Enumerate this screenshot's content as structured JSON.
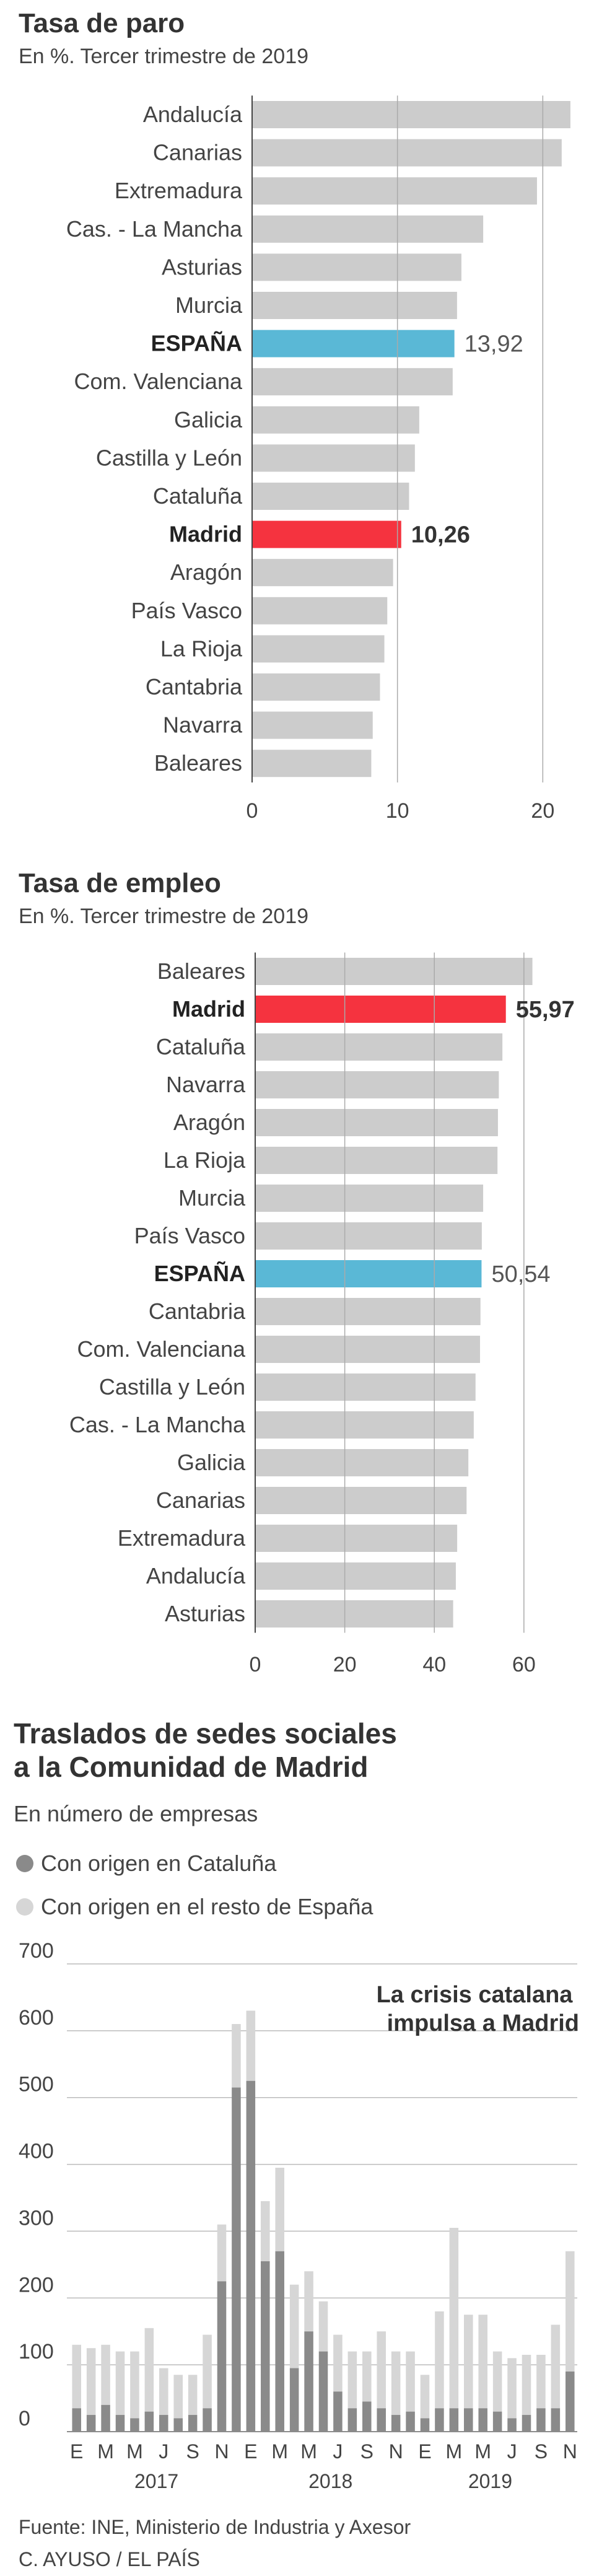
{
  "colors": {
    "bar_default": "#cccccc",
    "bar_spain": "#5ab8d6",
    "bar_madrid": "#f5333f",
    "text": "#333333",
    "cataluna": "#8a8a8a",
    "resto": "#d6d6d6"
  },
  "chart_data": [
    {
      "type": "bar",
      "orientation": "horizontal",
      "title": "Tasa de paro",
      "subtitle": "En %. Tercer trimestre de 2019",
      "categories": [
        "Andalucía",
        "Canarias",
        "Extremadura",
        "Cas. - La Mancha",
        "Asturias",
        "Murcia",
        "ESPAÑA",
        "Com. Valenciana",
        "Galicia",
        "Castilla y León",
        "Cataluña",
        "Madrid",
        "Aragón",
        "País Vasco",
        "La Rioja",
        "Cantabria",
        "Navarra",
        "Baleares"
      ],
      "values": [
        21.9,
        21.3,
        19.6,
        15.9,
        14.4,
        14.1,
        13.92,
        13.8,
        11.5,
        11.2,
        10.8,
        10.26,
        9.7,
        9.3,
        9.1,
        8.8,
        8.3,
        8.2
      ],
      "highlight": {
        "ESPAÑA": "spain",
        "Madrid": "madrid"
      },
      "data_labels": {
        "ESPAÑA": "13,92",
        "Madrid": "10,26"
      },
      "xticks": [
        0,
        10,
        20
      ],
      "xlim": [
        0,
        22.5
      ],
      "grid": true
    },
    {
      "type": "bar",
      "orientation": "horizontal",
      "title": "Tasa de empleo",
      "subtitle": "En %. Tercer trimestre de 2019",
      "categories": [
        "Baleares",
        "Madrid",
        "Cataluña",
        "Navarra",
        "Aragón",
        "La Rioja",
        "Murcia",
        "País Vasco",
        "ESPAÑA",
        "Cantabria",
        "Com. Valenciana",
        "Castilla y León",
        "Cas. - La Mancha",
        "Galicia",
        "Canarias",
        "Extremadura",
        "Andalucía",
        "Asturias"
      ],
      "values": [
        61.9,
        55.97,
        55.2,
        54.4,
        54.2,
        54.1,
        50.9,
        50.6,
        50.54,
        50.3,
        50.2,
        49.2,
        48.8,
        47.6,
        47.2,
        45.1,
        44.8,
        44.2
      ],
      "highlight": {
        "ESPAÑA": "spain",
        "Madrid": "madrid"
      },
      "data_labels": {
        "ESPAÑA": "50,54",
        "Madrid": "55,97"
      },
      "xticks": [
        0,
        20,
        40,
        60
      ],
      "xlim": [
        0,
        65
      ],
      "grid": true
    },
    {
      "type": "bar",
      "stacked": true,
      "title": "Traslados de sedes sociales\na la Comunidad de Madrid",
      "subtitle": "En número de empresas",
      "legend_position": "top-left",
      "annotation": "La crisis catalana\nimpulsa a Madrid",
      "x": [
        "E",
        "F",
        "M",
        "A",
        "M",
        "J",
        "J",
        "A",
        "S",
        "O",
        "N",
        "D",
        "E",
        "F",
        "M",
        "A",
        "M",
        "J",
        "J",
        "A",
        "S",
        "O",
        "N",
        "D",
        "E",
        "F",
        "M",
        "A",
        "M",
        "J",
        "J",
        "A",
        "S",
        "O",
        "N"
      ],
      "xtick_labels": [
        "E",
        "M",
        "M",
        "J",
        "S",
        "N",
        "E",
        "M",
        "M",
        "J",
        "S",
        "N",
        "E",
        "M",
        "M",
        "J",
        "S",
        "N"
      ],
      "xtick_index": [
        0,
        2,
        4,
        6,
        8,
        10,
        12,
        14,
        16,
        18,
        20,
        22,
        24,
        26,
        28,
        30,
        32,
        34
      ],
      "year_labels": [
        {
          "label": "2017",
          "index": 5.5
        },
        {
          "label": "2018",
          "index": 17.5
        },
        {
          "label": "2019",
          "index": 28.5
        }
      ],
      "series": [
        {
          "name": "Con origen en Cataluña",
          "values": [
            35,
            25,
            40,
            25,
            20,
            30,
            25,
            20,
            25,
            35,
            225,
            515,
            525,
            255,
            270,
            95,
            150,
            120,
            60,
            35,
            45,
            35,
            25,
            30,
            20,
            35,
            35,
            35,
            35,
            30,
            20,
            25,
            35,
            35,
            90
          ]
        },
        {
          "name": "Con origen en el resto de España",
          "values": [
            95,
            100,
            90,
            95,
            100,
            125,
            70,
            65,
            60,
            110,
            85,
            95,
            105,
            90,
            125,
            125,
            90,
            75,
            85,
            85,
            75,
            115,
            95,
            90,
            65,
            145,
            270,
            140,
            140,
            90,
            90,
            90,
            80,
            125,
            180
          ]
        }
      ],
      "yticks": [
        0,
        100,
        200,
        300,
        400,
        500,
        600,
        700
      ],
      "ylim": [
        0,
        700
      ],
      "grid": true
    }
  ],
  "footer": {
    "source": "Fuente: INE, Ministerio de Industria y Axesor",
    "credit": "C. AYUSO / EL PAÍS"
  }
}
